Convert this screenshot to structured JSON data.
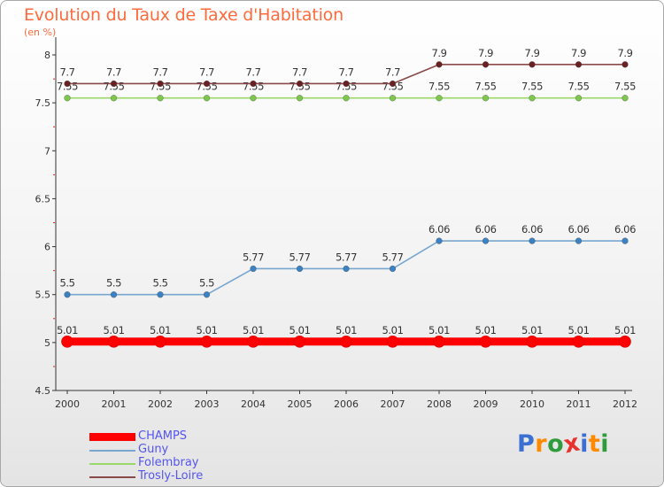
{
  "title": "Evolution du Taux de Taxe d'Habitation",
  "subtitle": "(en %)",
  "logo": {
    "text": "Proxiti",
    "letter_colors": [
      "#3b6fd1",
      "#ff8a00",
      "#2e9c3c",
      "#e8322d",
      "#3b6fd1",
      "#ff8a00",
      "#2e9c3c"
    ]
  },
  "colors": {
    "axis": "#333333",
    "grid_tick_red": "#e02020",
    "value_label": "#333333",
    "tick_label": "#333333"
  },
  "chart_data": {
    "type": "line",
    "title": "Evolution du Taux de Taxe d'Habitation",
    "ylabel": "(en %)",
    "xlabel": "",
    "ylim": [
      4.5,
      8
    ],
    "yticks": [
      "4.5",
      "5",
      "5.5",
      "6",
      "6.5",
      "7",
      "7.5",
      "8"
    ],
    "x": [
      "2000",
      "2001",
      "2002",
      "2003",
      "2004",
      "2005",
      "2006",
      "2007",
      "2008",
      "2009",
      "2010",
      "2011",
      "2012"
    ],
    "legend_position": "bottom-left",
    "series": [
      {
        "name": "CHAMPS",
        "color": "#ff0000",
        "thick": true,
        "values": [
          5.01,
          5.01,
          5.01,
          5.01,
          5.01,
          5.01,
          5.01,
          5.01,
          5.01,
          5.01,
          5.01,
          5.01,
          5.01
        ],
        "labels": [
          "5.01",
          "5.01",
          "5.01",
          "5.01",
          "5.01",
          "5.01",
          "5.01",
          "5.01",
          "5.01",
          "5.01",
          "5.01",
          "5.01",
          "5.01"
        ]
      },
      {
        "name": "Guny",
        "color": "#78a6cf",
        "dot": "#3a82c4",
        "values": [
          5.5,
          5.5,
          5.5,
          5.5,
          5.77,
          5.77,
          5.77,
          5.77,
          6.06,
          6.06,
          6.06,
          6.06,
          6.06
        ],
        "labels": [
          "5.5",
          "5.5",
          "5.5",
          "5.5",
          "5.77",
          "5.77",
          "5.77",
          "5.77",
          "6.06",
          "6.06",
          "6.06",
          "6.06",
          "6.06"
        ]
      },
      {
        "name": "Folembray",
        "color": "#9ad86a",
        "dot": "#7cc84a",
        "values": [
          7.55,
          7.55,
          7.55,
          7.55,
          7.55,
          7.55,
          7.55,
          7.55,
          7.55,
          7.55,
          7.55,
          7.55,
          7.55
        ],
        "labels": [
          "7.55",
          "7.55",
          "7.55",
          "7.55",
          "7.55",
          "7.55",
          "7.55",
          "7.55",
          "7.55",
          "7.55",
          "7.55",
          "7.55",
          "7.55"
        ]
      },
      {
        "name": "Trosly-Loire",
        "color": "#8b4a4a",
        "dot": "#6a1f22",
        "values": [
          7.7,
          7.7,
          7.7,
          7.7,
          7.7,
          7.7,
          7.7,
          7.7,
          7.9,
          7.9,
          7.9,
          7.9,
          7.9
        ],
        "labels": [
          "7.7",
          "7.7",
          "7.7",
          "7.7",
          "7.7",
          "7.7",
          "7.7",
          "7.7",
          "7.9",
          "7.9",
          "7.9",
          "7.9",
          "7.9"
        ]
      }
    ]
  }
}
